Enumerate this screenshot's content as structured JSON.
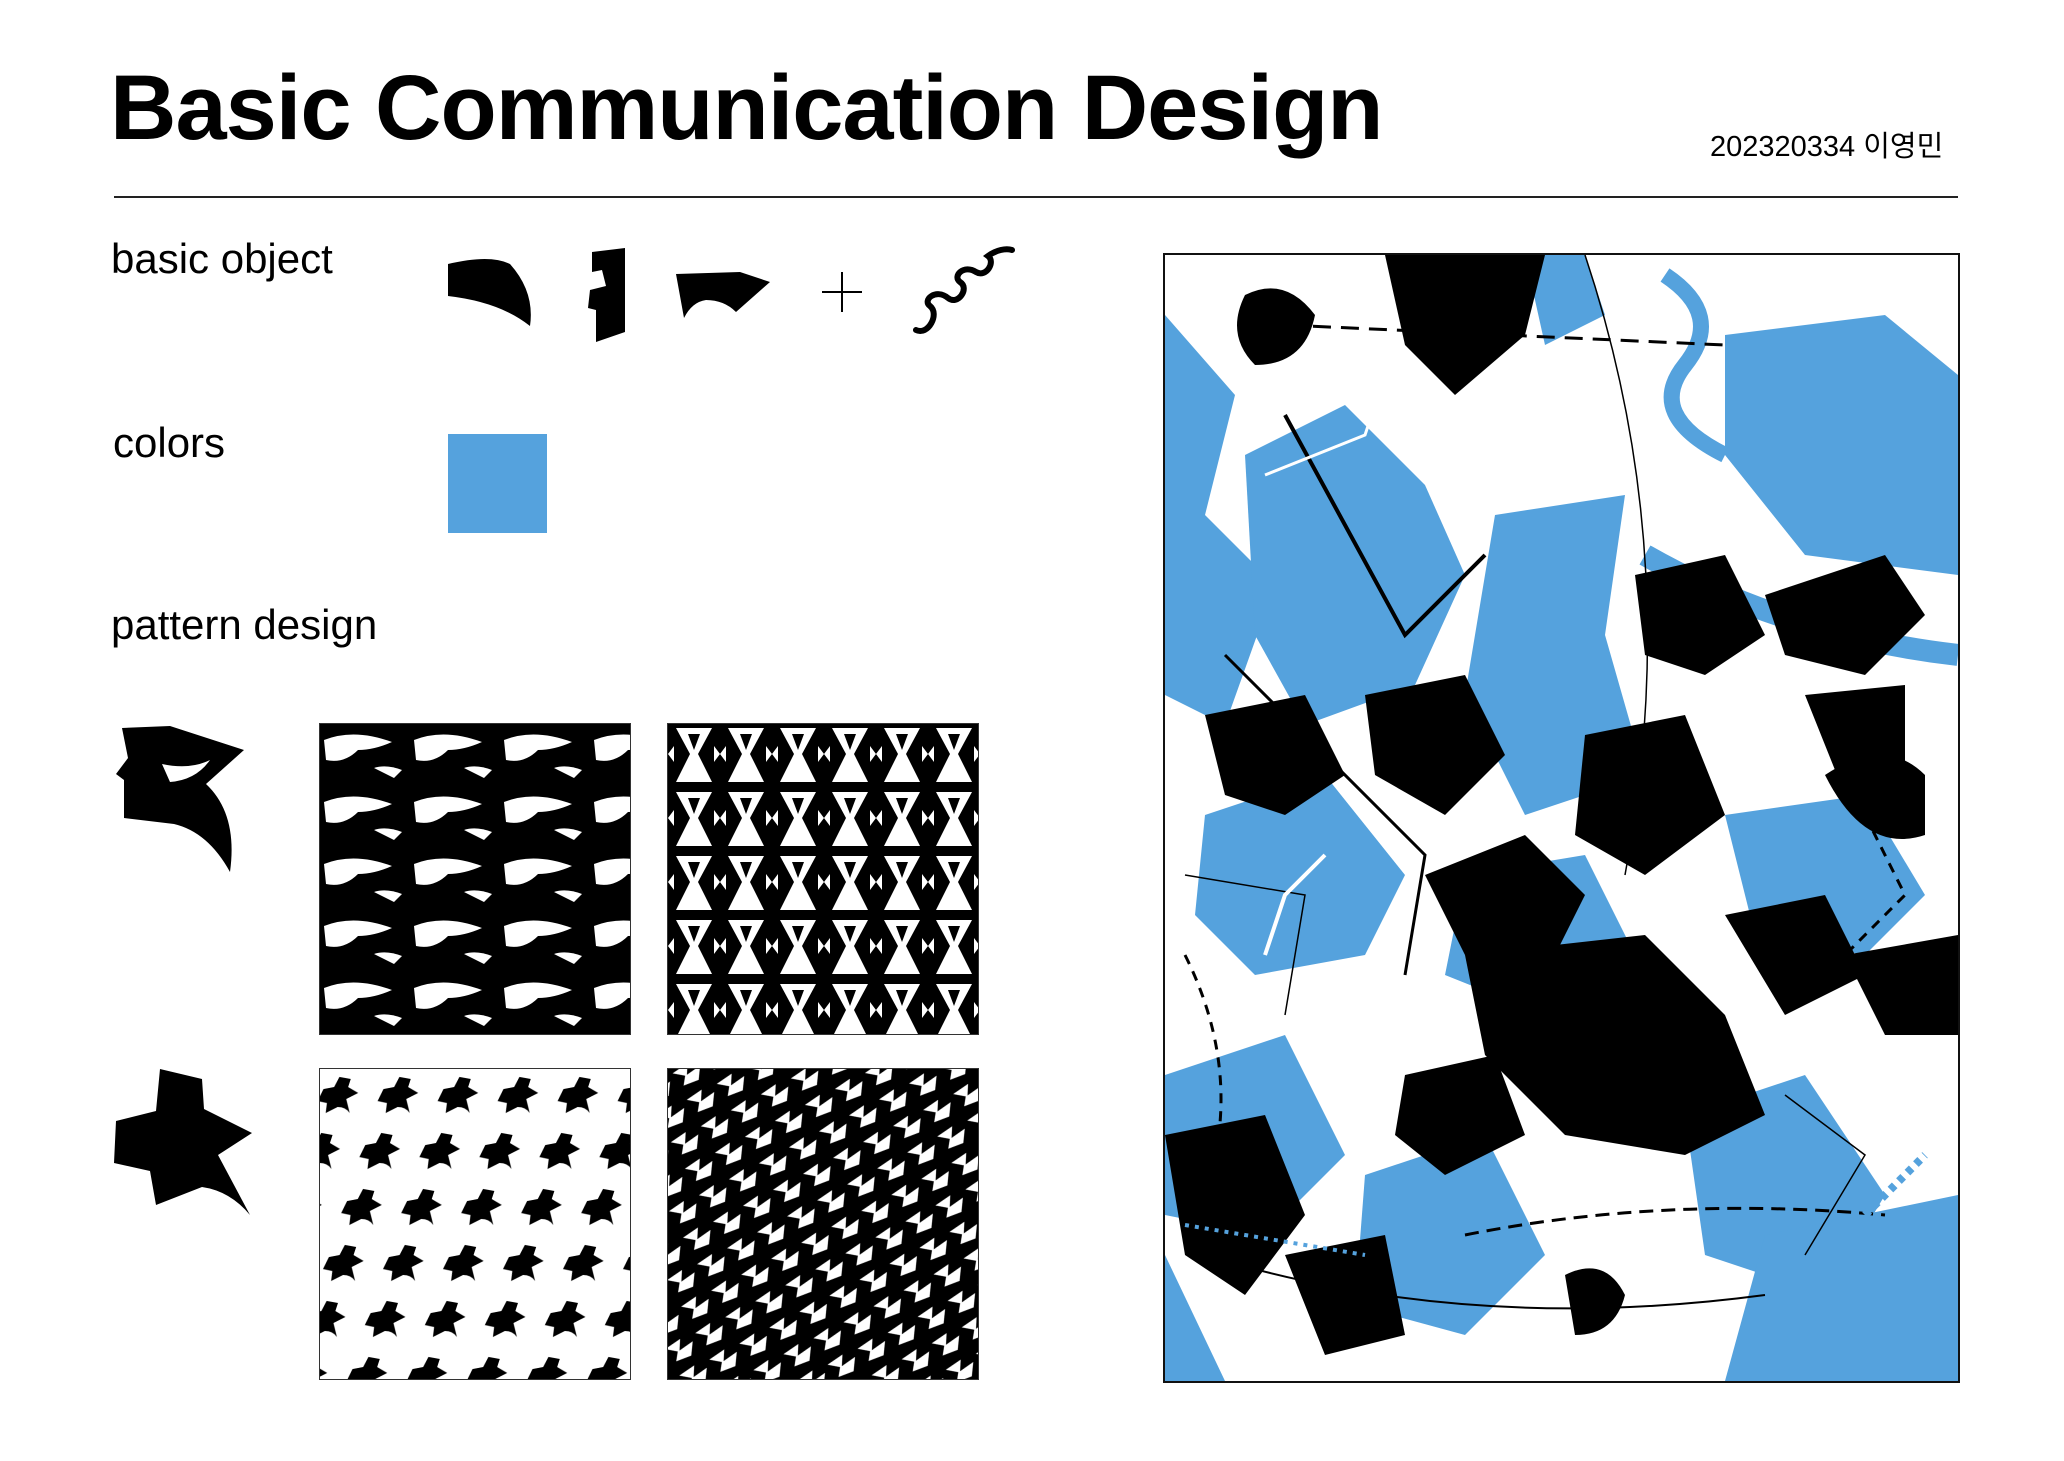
{
  "header": {
    "title": "Basic Communication Design",
    "student": "202320334 이영민"
  },
  "sections": {
    "basic_object_label": "basic object",
    "colors_label": "colors",
    "pattern_label": "pattern design"
  },
  "palette": {
    "accent": "#55a2dd",
    "ink": "#000000",
    "paper": "#ffffff"
  },
  "basic_objects": [
    "curved-wedge-shape",
    "notched-bar-shape",
    "swoosh-shape",
    "plus-sign",
    "wave-line"
  ],
  "patterns": [
    "pattern-tile-birds",
    "pattern-tile-hourglass",
    "pattern-tile-stars",
    "pattern-tile-zigzag"
  ]
}
